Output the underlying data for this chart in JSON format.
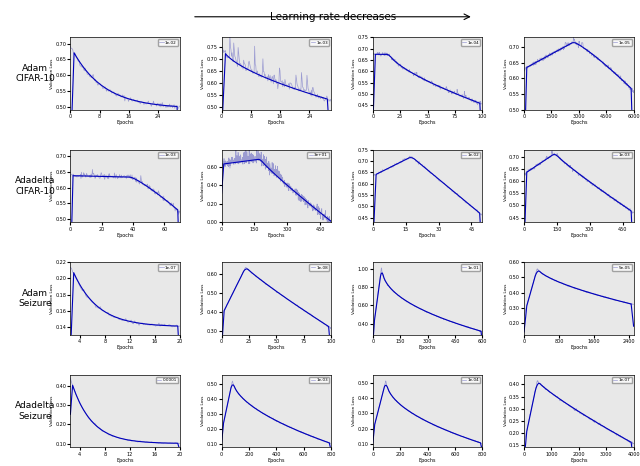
{
  "title": "Learning rate decreases",
  "figsize": [
    6.4,
    4.66
  ],
  "dpi": 100,
  "row_labels": [
    "Adam\nCIFAR-10",
    "Adadelta\nCIFAR-10",
    "Adam\nSeizure",
    "Adadelta\nSeizure"
  ],
  "background_color": "#e8e8e8",
  "curve_color": "#0000bb",
  "noisy_color": "#8888cc",
  "ylabel": "Validation Loss",
  "xlabel": "Epochs",
  "lr_labels": [
    [
      "1e-02",
      "1e-03",
      "1e-04",
      "1e-05"
    ],
    [
      "1e-03",
      "3e+01",
      "1e-02",
      "1e-03"
    ],
    [
      "1e-07",
      "1e-08",
      "1e-01",
      "5e-05"
    ],
    [
      "0.0001",
      "1e-03",
      "1e-04",
      "1e-07"
    ]
  ]
}
